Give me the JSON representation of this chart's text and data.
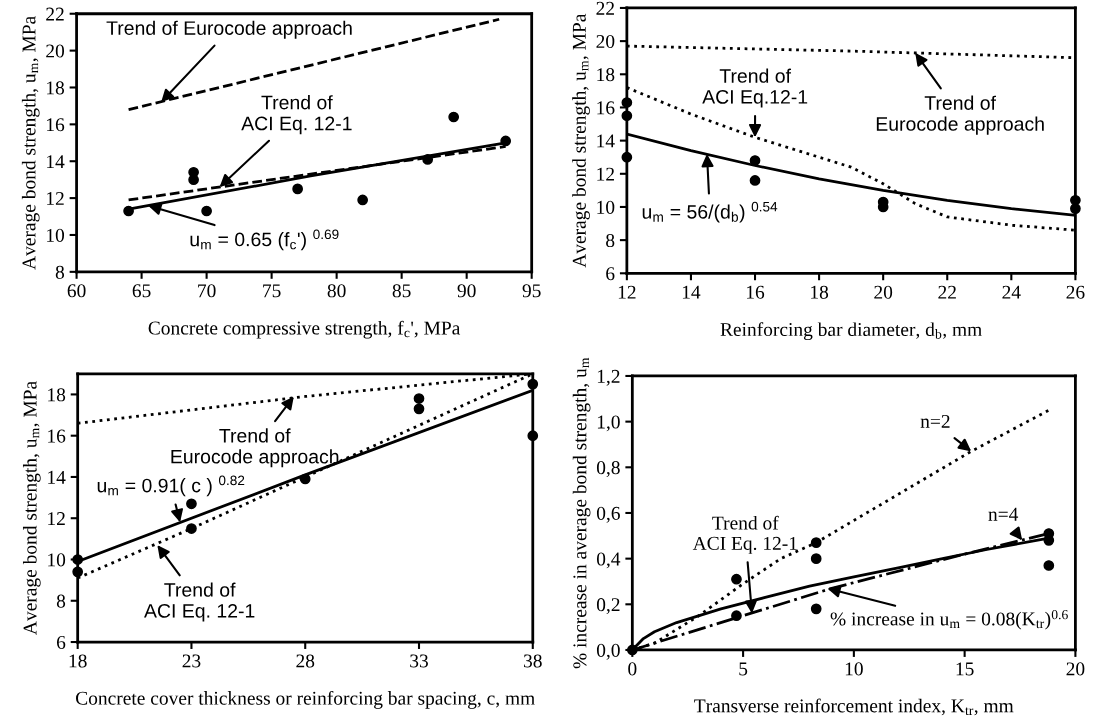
{
  "chart_data": [
    {
      "type": "scatter",
      "xlabel": "Concrete compressive strength, f$_{c}$', MPa",
      "ylabel": "Average bond strength, u$_{m}$, MPa",
      "xlim": [
        60,
        95
      ],
      "xticks": [
        60,
        65,
        70,
        75,
        80,
        85,
        90,
        95
      ],
      "ylim": [
        8,
        22
      ],
      "yticks": [
        8,
        10,
        12,
        14,
        16,
        18,
        20,
        22
      ],
      "series": [
        {
          "color": "#000000",
          "marker": "circle",
          "x": [
            64,
            69,
            69,
            70,
            77,
            82,
            87,
            89,
            93
          ],
          "values": [
            11.3,
            13.4,
            13.0,
            11.3,
            12.5,
            11.9,
            14.1,
            16.4,
            15.1
          ]
        },
        {
          "type": "line",
          "color": "#000000",
          "marker": "none",
          "line_style": "solid",
          "x": [
            64,
            78,
            93
          ],
          "values": [
            11.4,
            13.2,
            15.0
          ]
        },
        {
          "type": "line",
          "color": "#000000",
          "marker": "none",
          "line_style": "dashed",
          "x": [
            64,
            78,
            93
          ],
          "values": [
            11.9,
            13.3,
            14.8
          ]
        },
        {
          "type": "line",
          "color": "#000000",
          "marker": "none",
          "line_style": "dashed",
          "x": [
            64,
            92.5
          ],
          "values": [
            16.8,
            21.7
          ]
        }
      ],
      "annotations": [
        {
          "text": "Trend of Eurocode approach",
          "x": 66.5,
          "y": 17.2
        },
        {
          "text": "Trend of\nACI Eq. 12-1",
          "x": 71,
          "y": 12.6
        },
        {
          "text": "u$_{m}$ = 0.65 (f$_{c}$') $^{0.69}$",
          "x": 65.5,
          "y": 11.6
        }
      ]
    },
    {
      "type": "scatter",
      "xlabel": "Reinforcing bar diameter, d$_{b}$, mm",
      "ylabel": "Average bond strength, u$_{m}$, MPa",
      "xlim": [
        12,
        26
      ],
      "xticks": [
        12,
        14,
        16,
        18,
        20,
        22,
        24,
        26
      ],
      "ylim": [
        6,
        22
      ],
      "yticks": [
        6,
        8,
        10,
        12,
        14,
        16,
        18,
        20,
        22
      ],
      "series": [
        {
          "color": "#000000",
          "marker": "circle",
          "x": [
            12,
            12,
            12,
            16,
            16,
            20,
            20,
            26,
            26
          ],
          "values": [
            16.3,
            15.5,
            13.0,
            12.8,
            11.6,
            10.3,
            10.0,
            10.4,
            9.9
          ]
        },
        {
          "type": "line",
          "color": "#000000",
          "marker": "none",
          "line_style": "solid",
          "x": [
            12,
            14,
            16,
            18,
            20,
            22,
            24,
            26
          ],
          "values": [
            14.4,
            13.4,
            12.5,
            11.7,
            11.0,
            10.4,
            9.9,
            9.5
          ]
        },
        {
          "type": "line",
          "color": "#000000",
          "marker": "none",
          "line_style": "dotted",
          "x": [
            12,
            14,
            16,
            18,
            19,
            20,
            21,
            22,
            24,
            26
          ],
          "values": [
            17.2,
            15.6,
            14.2,
            13.0,
            12.4,
            11.4,
            10.2,
            9.4,
            8.9,
            8.6
          ]
        },
        {
          "type": "line",
          "color": "#000000",
          "marker": "none",
          "line_style": "dotted",
          "x": [
            12,
            19,
            26
          ],
          "values": [
            19.7,
            19.4,
            19.0
          ]
        }
      ],
      "annotations": [
        {
          "text": "Trend of\nACI Eq.12-1",
          "x": 16,
          "y": 14.2
        },
        {
          "text": "Trend of\nEurocode approach",
          "x": 21,
          "y": 19.3
        },
        {
          "text": "u$_{m}$ = 56/(d$_{b}$) $^{0.54}$",
          "x": 14.5,
          "y": 13.2
        }
      ]
    },
    {
      "type": "scatter",
      "xlabel": "Concrete cover thickness or reinforcing bar spacing, c, mm",
      "ylabel": "Average bond strength, u$_{m}$, MPa",
      "xlim": [
        18,
        38
      ],
      "xticks": [
        18,
        23,
        28,
        33,
        38
      ],
      "ylim": [
        6,
        19
      ],
      "yticks": [
        6,
        8,
        10,
        12,
        14,
        16,
        18
      ],
      "series": [
        {
          "color": "#000000",
          "marker": "circle",
          "x": [
            18,
            18,
            23,
            23,
            28,
            33,
            33,
            38,
            38
          ],
          "values": [
            10.0,
            9.4,
            12.7,
            11.5,
            13.9,
            17.8,
            17.3,
            18.5,
            16.0
          ]
        },
        {
          "type": "line",
          "color": "#000000",
          "marker": "none",
          "line_style": "solid",
          "x": [
            18,
            28,
            38
          ],
          "values": [
            9.9,
            14.1,
            18.2
          ]
        },
        {
          "type": "line",
          "color": "#000000",
          "marker": "none",
          "line_style": "dotted",
          "x": [
            18,
            23,
            28,
            33,
            38
          ],
          "values": [
            9.1,
            11.5,
            14.0,
            16.5,
            19.0
          ]
        },
        {
          "type": "line",
          "color": "#000000",
          "marker": "none",
          "line_style": "dotted",
          "x": [
            18,
            28,
            38
          ],
          "values": [
            16.6,
            17.9,
            19.0
          ]
        }
      ],
      "annotations": [
        {
          "text": "Trend of\nEurocode approach",
          "x": 27.5,
          "y": 17.9
        },
        {
          "text": "u$_{m}$ = 0.91( c ) $^{0.82}$",
          "x": 22.5,
          "y": 11.8
        },
        {
          "text": "Trend of\nACI Eq. 12-1",
          "x": 21.5,
          "y": 10.7
        }
      ]
    },
    {
      "type": "scatter",
      "xlabel": "Transverse reinforcement index, K$_{tr}$, mm",
      "ylabel": "% increase in average bond strength, u$_{m}$",
      "xlim": [
        0,
        20
      ],
      "xticks": [
        0,
        5,
        10,
        15,
        20
      ],
      "ylim": [
        0,
        1.2
      ],
      "yticks": [
        {
          "value": 0,
          "label": "0,0"
        },
        {
          "value": 0.2,
          "label": "0,2"
        },
        {
          "value": 0.4,
          "label": "0,4"
        },
        {
          "value": 0.6,
          "label": "0,6"
        },
        {
          "value": 0.8,
          "label": "0,8"
        },
        {
          "value": 1.0,
          "label": "1,0"
        },
        {
          "value": 1.2,
          "label": "1,2"
        }
      ],
      "series": [
        {
          "color": "#000000",
          "marker": "circle",
          "x": [
            0,
            4.7,
            4.7,
            8.3,
            8.3,
            8.3,
            18.8,
            18.8,
            18.8
          ],
          "values": [
            0,
            0.31,
            0.15,
            0.47,
            0.4,
            0.18,
            0.51,
            0.48,
            0.37
          ]
        },
        {
          "type": "line",
          "color": "#000000",
          "marker": "none",
          "line_style": "solid",
          "x": [
            0,
            0.5,
            1,
            2,
            4,
            6,
            8,
            10,
            12,
            14,
            16,
            18.8
          ],
          "values": [
            0,
            0.05,
            0.08,
            0.12,
            0.18,
            0.23,
            0.28,
            0.32,
            0.36,
            0.4,
            0.44,
            0.49
          ]
        },
        {
          "type": "line",
          "color": "#000000",
          "marker": "none",
          "line_style": "dotted",
          "x": [
            0,
            1,
            2,
            3,
            5,
            6.7,
            8.3,
            15.3,
            18.8
          ],
          "values": [
            0,
            0.03,
            0.09,
            0.15,
            0.29,
            0.4,
            0.47,
            0.87,
            1.05
          ]
        },
        {
          "type": "line",
          "color": "#000000",
          "marker": "none",
          "line_style": "dashdot",
          "x": [
            0,
            5,
            9,
            15,
            18.8
          ],
          "values": [
            0,
            0.15,
            0.27,
            0.42,
            0.51
          ]
        }
      ],
      "annotations": [
        {
          "text": "Trend of\nACI Eq. 12-1",
          "x": 5.4,
          "y": 0.16
        },
        {
          "text": "n=2",
          "x": 15.3,
          "y": 0.87
        },
        {
          "text": "n=4",
          "x": 17.6,
          "y": 0.48
        },
        {
          "text": "% increase in u$_{m}$ = 0.08(K$_{tr}$)$^{0.6}$",
          "x": 8.8,
          "y": 0.27
        }
      ]
    }
  ]
}
